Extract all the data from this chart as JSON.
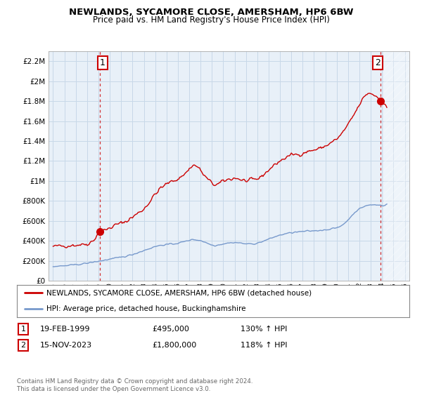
{
  "title": "NEWLANDS, SYCAMORE CLOSE, AMERSHAM, HP6 6BW",
  "subtitle": "Price paid vs. HM Land Registry's House Price Index (HPI)",
  "ylim": [
    0,
    2300000
  ],
  "yticks": [
    0,
    200000,
    400000,
    600000,
    800000,
    1000000,
    1200000,
    1400000,
    1600000,
    1800000,
    2000000,
    2200000
  ],
  "ytick_labels": [
    "£0",
    "£200K",
    "£400K",
    "£600K",
    "£800K",
    "£1M",
    "£1.2M",
    "£1.4M",
    "£1.6M",
    "£1.8M",
    "£2M",
    "£2.2M"
  ],
  "red_line_label": "NEWLANDS, SYCAMORE CLOSE, AMERSHAM, HP6 6BW (detached house)",
  "blue_line_label": "HPI: Average price, detached house, Buckinghamshire",
  "point1_date": "19-FEB-1999",
  "point1_price": "£495,000",
  "point1_hpi": "130% ↑ HPI",
  "point2_date": "15-NOV-2023",
  "point2_price": "£1,800,000",
  "point2_hpi": "118% ↑ HPI",
  "footer": "Contains HM Land Registry data © Crown copyright and database right 2024.\nThis data is licensed under the Open Government Licence v3.0.",
  "red_color": "#cc0000",
  "blue_color": "#7799cc",
  "grid_color": "#c8d8e8",
  "bg_color": "#ffffff",
  "plot_bg_color": "#e8f0f8",
  "hatch_color": "#d0d8e0",
  "point1_x": 1999.12,
  "point1_y": 495000,
  "point2_x": 2023.88,
  "point2_y": 1800000,
  "vline1_x": 1999.12,
  "vline2_x": 2023.88,
  "xlim_start": 1994.6,
  "xlim_end": 2026.4,
  "hatch_start": 2024.17
}
